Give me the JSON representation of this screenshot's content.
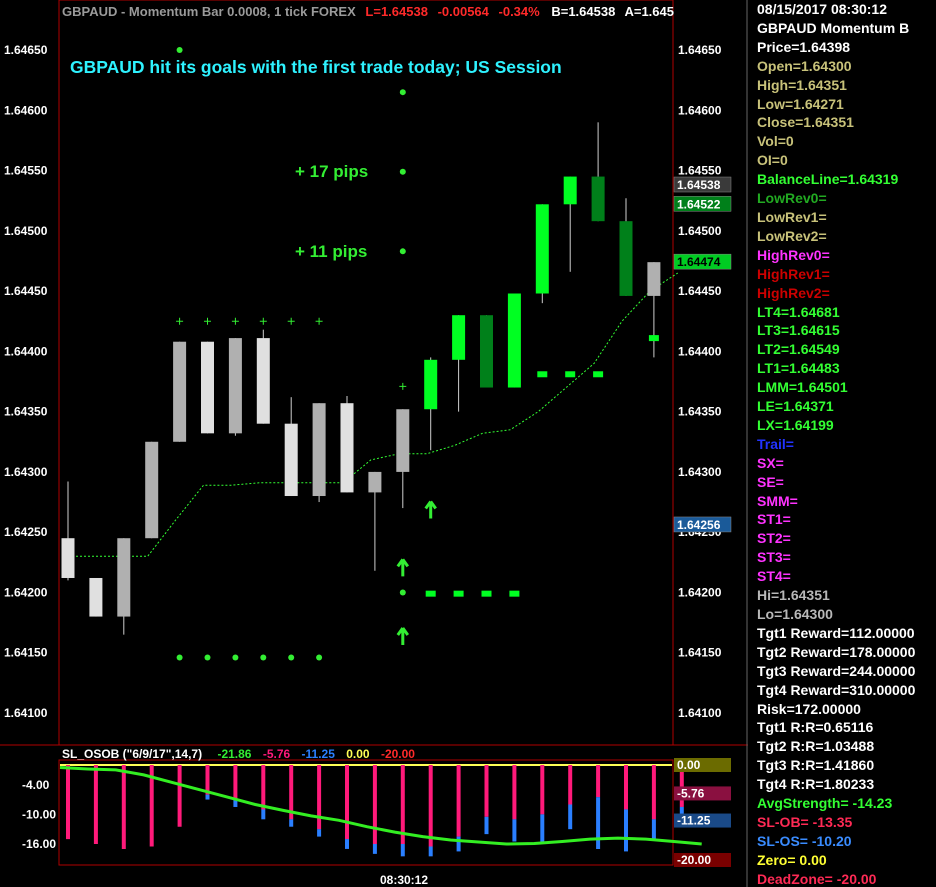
{
  "colors": {
    "background": "#000000",
    "frame": "#b00000",
    "bull_bar": "#00ff22",
    "bull_bar_dark": "#00801a",
    "bear_bar": "#b0b0b0",
    "bear_bar_light": "#e0e0e0",
    "balance_line": "#33ff33",
    "title_text": "#2ef2ff",
    "annotation": "#33ee33",
    "osob_line": "#33ee22",
    "osob_pink": "#ff1a7a",
    "osob_blue": "#2a7fff",
    "zero_line": "#ffff55",
    "info_white": "#ffffff",
    "info_olive": "#c8c27a",
    "info_green": "#33ff33",
    "info_magenta": "#ff33ff",
    "info_darkred": "#cc0000",
    "info_blue": "#2233ff",
    "info_gray": "#b8b8b8",
    "info_red": "#ff2a55",
    "info_skyblue": "#3a8cff",
    "info_yellow": "#ffff33"
  },
  "chart_header": {
    "symbol_text": "GBPAUD - Momentum Bar 0.0008, 1 tick  FOREX",
    "last": "L=1.64538",
    "change": "-0.00564",
    "change_pct": "-0.34%",
    "bid": "B=1.64538",
    "ask": "A=1.645"
  },
  "annotations": {
    "title": "GBPAUD hit its goals with the first trade today; US Session",
    "pips_17": "+ 17 pips",
    "pips_11": "+ 11 pips"
  },
  "price_axis": {
    "ticks": [
      "1.64650",
      "1.64600",
      "1.64550",
      "1.64500",
      "1.64450",
      "1.64400",
      "1.64350",
      "1.64300",
      "1.64250",
      "1.64200",
      "1.64150",
      "1.64100"
    ],
    "right_tags": [
      {
        "text": "1.64538",
        "price": 1.64538,
        "bg": "#3a3a3a",
        "fg": "#ffffff"
      },
      {
        "text": "1.64522",
        "price": 1.64522,
        "bg": "#00801a",
        "fg": "#ffffff"
      },
      {
        "text": "1.64474",
        "price": 1.64474,
        "bg": "#00cc22",
        "fg": "#000000"
      },
      {
        "text": "1.64256",
        "price": 1.64256,
        "bg": "#1a5a99",
        "fg": "#ffffff"
      }
    ]
  },
  "time_axis": {
    "label": "08:30:12"
  },
  "osob": {
    "header_name": "SL_OSOB (\"6/9/17\",14,7)",
    "values": [
      "-21.86",
      "-5.76",
      "-11.25",
      "0.00",
      "-20.00"
    ],
    "ticks": [
      "-4.00",
      "-10.00",
      "-16.00"
    ],
    "right_tags": [
      {
        "text": "0.00",
        "value": 0,
        "bg": "#6b6b00",
        "fg": "#ffffff"
      },
      {
        "text": "-5.76",
        "value": -5.76,
        "bg": "#8a1040",
        "fg": "#ffffff"
      },
      {
        "text": "-11.25",
        "value": -11.25,
        "bg": "#1a4a88",
        "fg": "#ffffff"
      },
      {
        "text": "-20.00",
        "value": -20.0,
        "bg": "#7a0000",
        "fg": "#ffffff"
      }
    ]
  },
  "chart_data": [
    {
      "type": "candlestick",
      "title": "",
      "ylim": [
        1.64075,
        1.64675
      ],
      "candles": [
        {
          "o": 1.64245,
          "h": 1.64292,
          "l": 1.6421,
          "c": 1.64212,
          "col": "bear_bar_light"
        },
        {
          "o": 1.64212,
          "h": 1.64212,
          "l": 1.6418,
          "c": 1.6418,
          "col": "bear_bar_light"
        },
        {
          "o": 1.6418,
          "h": 1.64245,
          "l": 1.64165,
          "c": 1.64245,
          "col": "bear_bar"
        },
        {
          "o": 1.64245,
          "h": 1.64325,
          "l": 1.64245,
          "c": 1.64325,
          "col": "bear_bar"
        },
        {
          "o": 1.64325,
          "h": 1.64408,
          "l": 1.64325,
          "c": 1.64408,
          "col": "bear_bar"
        },
        {
          "o": 1.64408,
          "h": 1.64408,
          "l": 1.64332,
          "c": 1.64332,
          "col": "bear_bar_light"
        },
        {
          "o": 1.64332,
          "h": 1.64411,
          "l": 1.6433,
          "c": 1.64411,
          "col": "bear_bar"
        },
        {
          "o": 1.64411,
          "h": 1.64418,
          "l": 1.6434,
          "c": 1.6434,
          "col": "bear_bar_light"
        },
        {
          "o": 1.6434,
          "h": 1.64362,
          "l": 1.6428,
          "c": 1.6428,
          "col": "bear_bar_light"
        },
        {
          "o": 1.6428,
          "h": 1.64357,
          "l": 1.64275,
          "c": 1.64357,
          "col": "bear_bar"
        },
        {
          "o": 1.64357,
          "h": 1.64363,
          "l": 1.64283,
          "c": 1.64283,
          "col": "bear_bar_light"
        },
        {
          "o": 1.64283,
          "h": 1.643,
          "l": 1.64218,
          "c": 1.643,
          "col": "bear_bar"
        },
        {
          "o": 1.643,
          "h": 1.64352,
          "l": 1.6427,
          "c": 1.64352,
          "col": "bear_bar"
        },
        {
          "o": 1.64352,
          "h": 1.64395,
          "l": 1.64318,
          "c": 1.64393,
          "col": "bull_bar"
        },
        {
          "o": 1.64393,
          "h": 1.6443,
          "l": 1.6435,
          "c": 1.6443,
          "col": "bull_bar"
        },
        {
          "o": 1.6443,
          "h": 1.6443,
          "l": 1.6437,
          "c": 1.6437,
          "col": "bull_bar_dark"
        },
        {
          "o": 1.6437,
          "h": 1.64448,
          "l": 1.6437,
          "c": 1.64448,
          "col": "bull_bar"
        },
        {
          "o": 1.64448,
          "h": 1.64522,
          "l": 1.6444,
          "c": 1.64522,
          "col": "bull_bar"
        },
        {
          "o": 1.64522,
          "h": 1.64545,
          "l": 1.64466,
          "c": 1.64545,
          "col": "bull_bar"
        },
        {
          "o": 1.64545,
          "h": 1.6459,
          "l": 1.64508,
          "c": 1.64508,
          "col": "bull_bar_dark"
        },
        {
          "o": 1.64508,
          "h": 1.64527,
          "l": 1.64446,
          "c": 1.64446,
          "col": "bull_bar_dark"
        },
        {
          "o": 1.64446,
          "h": 1.64474,
          "l": 1.64395,
          "c": 1.64474,
          "col": "bear_bar"
        }
      ],
      "balance_line": [
        1.6423,
        1.6423,
        1.6423,
        1.6423,
        1.6426,
        1.64289,
        1.64289,
        1.64291,
        1.64291,
        1.64291,
        1.64291,
        1.6431,
        1.64315,
        1.64315,
        1.64322,
        1.64332,
        1.64335,
        1.6435,
        1.6437,
        1.6439,
        1.64425,
        1.6445,
        1.64465
      ],
      "goal_dots": [
        {
          "x": 4.0,
          "y": 1.6465
        },
        {
          "x": 12.0,
          "y": 1.64615
        },
        {
          "x": 12.0,
          "y": 1.64549
        },
        {
          "x": 12.0,
          "y": 1.64483
        },
        {
          "x": 12.0,
          "y": 1.642
        }
      ],
      "low_dots": [
        1.64146
      ],
      "low_dot_bars": [
        4,
        5,
        6,
        7,
        8,
        9
      ],
      "plus_marks": [
        {
          "bars": [
            4,
            5,
            6,
            7,
            8,
            9
          ],
          "y": 1.64425
        },
        {
          "bars": [
            12
          ],
          "y": 1.64371
        }
      ],
      "dash_marks": [
        {
          "bars": [
            13,
            14,
            15,
            16
          ],
          "y": 1.64199
        },
        {
          "bars": [
            17,
            18,
            19
          ],
          "y": 1.64381
        },
        {
          "bars": [
            21
          ],
          "y": 1.64411
        }
      ],
      "arrows": [
        {
          "bar": 13,
          "y": 1.64268
        },
        {
          "bar": 12,
          "y": 1.6422
        },
        {
          "bar": 12,
          "y": 1.64163
        }
      ]
    },
    {
      "type": "bar",
      "title": "",
      "ylim": [
        -20.0,
        1.0
      ],
      "bars": [
        {
          "pink": -15.0,
          "blue": 0
        },
        {
          "pink": -16.0,
          "blue": 0
        },
        {
          "pink": -17.0,
          "blue": 0
        },
        {
          "pink": -16.5,
          "blue": 0
        },
        {
          "pink": -12.5,
          "blue": 0
        },
        {
          "pink": -6.0,
          "blue": -7.0
        },
        {
          "pink": -7.0,
          "blue": -8.5
        },
        {
          "pink": -9.0,
          "blue": -11.0
        },
        {
          "pink": -11.0,
          "blue": -12.5
        },
        {
          "pink": -13.0,
          "blue": -14.5
        },
        {
          "pink": -15.0,
          "blue": -17.0
        },
        {
          "pink": -16.0,
          "blue": -18.0
        },
        {
          "pink": -16.0,
          "blue": -18.5
        },
        {
          "pink": -16.5,
          "blue": -18.5
        },
        {
          "pink": -14.5,
          "blue": -17.5
        },
        {
          "pink": -10.5,
          "blue": -14.0
        },
        {
          "pink": -11.0,
          "blue": -15.5
        },
        {
          "pink": -10.0,
          "blue": -15.5
        },
        {
          "pink": -8.0,
          "blue": -13.0
        },
        {
          "pink": -6.5,
          "blue": -17.0
        },
        {
          "pink": -9.0,
          "blue": -17.5
        },
        {
          "pink": -11.0,
          "blue": -15.0
        },
        {
          "pink": -8.5,
          "blue": -12.0
        }
      ],
      "line": [
        -0.5,
        -0.8,
        -1.0,
        -2.0,
        -3.5,
        -5.0,
        -6.5,
        -8.0,
        -9.2,
        -10.3,
        -11.2,
        -12.5,
        -13.6,
        -14.5,
        -15.2,
        -15.6,
        -16.0,
        -15.9,
        -15.5,
        -15.0,
        -14.8,
        -15.0,
        -15.5,
        -16.0
      ],
      "zero_line": 0.0
    }
  ],
  "info_panel": {
    "lines": [
      {
        "text": "08/15/2017 08:30:12",
        "color": "#ffffff"
      },
      {
        "text": "GBPAUD Momentum B",
        "color": "#ffffff"
      },
      {
        "text": "Price=1.64398",
        "color": "#ffffff"
      },
      {
        "text": "Open=1.64300",
        "color": "#c8c27a"
      },
      {
        "text": "High=1.64351",
        "color": "#c8c27a"
      },
      {
        "text": "Low=1.64271",
        "color": "#c8c27a"
      },
      {
        "text": "Close=1.64351",
        "color": "#c8c27a"
      },
      {
        "text": "Vol=0",
        "color": "#c8c27a"
      },
      {
        "text": "OI=0",
        "color": "#c8c27a"
      },
      {
        "text": "BalanceLine=1.64319",
        "color": "#33ff33"
      },
      {
        "text": "LowRev0=",
        "color": "#22aa22"
      },
      {
        "text": "LowRev1=",
        "color": "#c8c27a"
      },
      {
        "text": "LowRev2=",
        "color": "#c8c27a"
      },
      {
        "text": "HighRev0=",
        "color": "#ff33ff"
      },
      {
        "text": "HighRev1=",
        "color": "#cc0000"
      },
      {
        "text": "HighRev2=",
        "color": "#cc0000"
      },
      {
        "text": "LT4=1.64681",
        "color": "#33ff33"
      },
      {
        "text": "LT3=1.64615",
        "color": "#33ff33"
      },
      {
        "text": "LT2=1.64549",
        "color": "#33ff33"
      },
      {
        "text": "LT1=1.64483",
        "color": "#33ff33"
      },
      {
        "text": "LMM=1.64501",
        "color": "#33ff33"
      },
      {
        "text": "LE=1.64371",
        "color": "#33ff33"
      },
      {
        "text": "LX=1.64199",
        "color": "#33ff33"
      },
      {
        "text": "Trail=",
        "color": "#2233ff"
      },
      {
        "text": "SX=",
        "color": "#ff33ff"
      },
      {
        "text": "SE=",
        "color": "#ff33ff"
      },
      {
        "text": "SMM=",
        "color": "#ff33ff"
      },
      {
        "text": "ST1=",
        "color": "#ff33ff"
      },
      {
        "text": "ST2=",
        "color": "#ff33ff"
      },
      {
        "text": "ST3=",
        "color": "#ff33ff"
      },
      {
        "text": "ST4=",
        "color": "#ff33ff"
      },
      {
        "text": "Hi=1.64351",
        "color": "#b8b8b8"
      },
      {
        "text": "Lo=1.64300",
        "color": "#b8b8b8"
      },
      {
        "text": "Tgt1 Reward=112.00000",
        "color": "#ffffff"
      },
      {
        "text": "Tgt2 Reward=178.00000",
        "color": "#ffffff"
      },
      {
        "text": "Tgt3 Reward=244.00000",
        "color": "#ffffff"
      },
      {
        "text": "Tgt4 Reward=310.00000",
        "color": "#ffffff"
      },
      {
        "text": "Risk=172.00000",
        "color": "#ffffff"
      },
      {
        "text": "Tgt1 R:R=0.65116",
        "color": "#ffffff"
      },
      {
        "text": "Tgt2 R:R=1.03488",
        "color": "#ffffff"
      },
      {
        "text": "Tgt3 R:R=1.41860",
        "color": "#ffffff"
      },
      {
        "text": "Tgt4 R:R=1.80233",
        "color": "#ffffff"
      },
      {
        "text": "AvgStrength= -14.23",
        "color": "#33ff33"
      },
      {
        "text": "SL-OB= -13.35",
        "color": "#ff2a55"
      },
      {
        "text": "SL-OS= -10.20",
        "color": "#3a8cff"
      },
      {
        "text": "Zero= 0.00",
        "color": "#ffff33"
      },
      {
        "text": "DeadZone= -20.00",
        "color": "#ff2a55"
      }
    ]
  }
}
